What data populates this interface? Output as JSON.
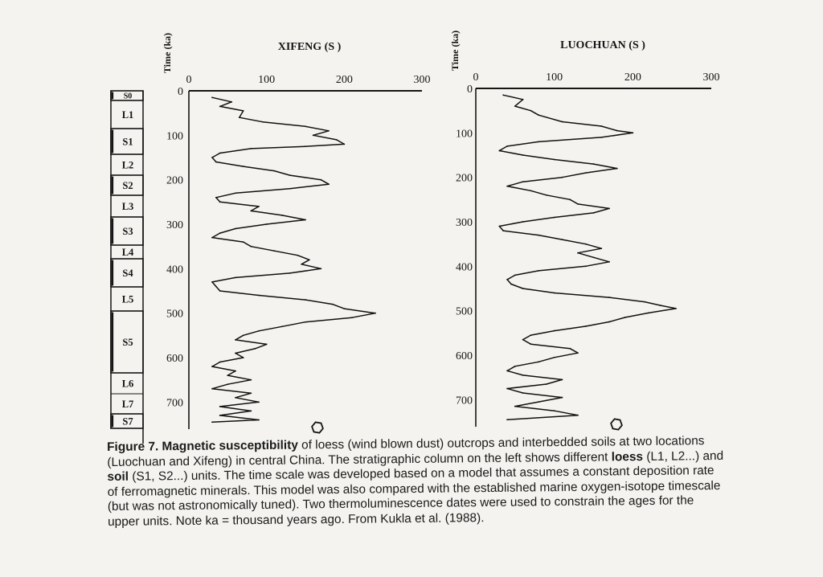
{
  "strat_units": [
    "S0",
    "L1",
    "S1",
    "L2",
    "S2",
    "L3",
    "S3",
    "L4",
    "S4",
    "L5",
    "S5",
    "L6",
    "L7",
    "S7"
  ],
  "time_label": "Time (ka)",
  "chart_data": [
    {
      "type": "line",
      "title": "XIFENG (S )",
      "xlabel": "",
      "ylabel": "Time (ka)",
      "xlim": [
        0,
        300
      ],
      "ylim": [
        0,
        750
      ],
      "y_inverted": true,
      "x_ticks": [
        0,
        100,
        200,
        300
      ],
      "y_ticks": [
        0,
        100,
        200,
        300,
        400,
        500,
        600,
        700
      ],
      "series": [
        {
          "values": [
            {
              "x": 30,
              "y": 15
            },
            {
              "x": 55,
              "y": 25
            },
            {
              "x": 40,
              "y": 35
            },
            {
              "x": 70,
              "y": 45
            },
            {
              "x": 65,
              "y": 60
            },
            {
              "x": 95,
              "y": 70
            },
            {
              "x": 150,
              "y": 80
            },
            {
              "x": 180,
              "y": 90
            },
            {
              "x": 160,
              "y": 100
            },
            {
              "x": 190,
              "y": 110
            },
            {
              "x": 200,
              "y": 120
            },
            {
              "x": 150,
              "y": 125
            },
            {
              "x": 80,
              "y": 130
            },
            {
              "x": 40,
              "y": 140
            },
            {
              "x": 30,
              "y": 150
            },
            {
              "x": 35,
              "y": 160
            },
            {
              "x": 70,
              "y": 170
            },
            {
              "x": 110,
              "y": 180
            },
            {
              "x": 130,
              "y": 190
            },
            {
              "x": 170,
              "y": 200
            },
            {
              "x": 180,
              "y": 210
            },
            {
              "x": 130,
              "y": 220
            },
            {
              "x": 60,
              "y": 230
            },
            {
              "x": 35,
              "y": 240
            },
            {
              "x": 40,
              "y": 250
            },
            {
              "x": 90,
              "y": 260
            },
            {
              "x": 80,
              "y": 270
            },
            {
              "x": 120,
              "y": 280
            },
            {
              "x": 150,
              "y": 290
            },
            {
              "x": 100,
              "y": 300
            },
            {
              "x": 60,
              "y": 310
            },
            {
              "x": 40,
              "y": 320
            },
            {
              "x": 30,
              "y": 330
            },
            {
              "x": 70,
              "y": 340
            },
            {
              "x": 80,
              "y": 350
            },
            {
              "x": 110,
              "y": 360
            },
            {
              "x": 140,
              "y": 370
            },
            {
              "x": 155,
              "y": 380
            },
            {
              "x": 145,
              "y": 390
            },
            {
              "x": 170,
              "y": 400
            },
            {
              "x": 130,
              "y": 410
            },
            {
              "x": 60,
              "y": 420
            },
            {
              "x": 30,
              "y": 430
            },
            {
              "x": 35,
              "y": 440
            },
            {
              "x": 40,
              "y": 450
            },
            {
              "x": 90,
              "y": 460
            },
            {
              "x": 150,
              "y": 470
            },
            {
              "x": 185,
              "y": 480
            },
            {
              "x": 200,
              "y": 490
            },
            {
              "x": 240,
              "y": 500
            },
            {
              "x": 210,
              "y": 510
            },
            {
              "x": 150,
              "y": 520
            },
            {
              "x": 120,
              "y": 530
            },
            {
              "x": 90,
              "y": 540
            },
            {
              "x": 70,
              "y": 550
            },
            {
              "x": 60,
              "y": 560
            },
            {
              "x": 100,
              "y": 570
            },
            {
              "x": 85,
              "y": 580
            },
            {
              "x": 60,
              "y": 590
            },
            {
              "x": 70,
              "y": 600
            },
            {
              "x": 40,
              "y": 610
            },
            {
              "x": 30,
              "y": 620
            },
            {
              "x": 60,
              "y": 630
            },
            {
              "x": 50,
              "y": 640
            },
            {
              "x": 80,
              "y": 650
            },
            {
              "x": 50,
              "y": 660
            },
            {
              "x": 30,
              "y": 670
            },
            {
              "x": 80,
              "y": 680
            },
            {
              "x": 60,
              "y": 690
            },
            {
              "x": 90,
              "y": 700
            },
            {
              "x": 40,
              "y": 710
            },
            {
              "x": 80,
              "y": 720
            },
            {
              "x": 40,
              "y": 730
            },
            {
              "x": 90,
              "y": 740
            },
            {
              "x": 30,
              "y": 745
            }
          ]
        }
      ]
    },
    {
      "type": "line",
      "title": "LUOCHUAN (S )",
      "xlabel": "",
      "ylabel": "Time (ka)",
      "xlim": [
        0,
        300
      ],
      "ylim": [
        0,
        750
      ],
      "y_inverted": true,
      "x_ticks": [
        0,
        100,
        200,
        300
      ],
      "y_ticks": [
        0,
        100,
        200,
        300,
        400,
        500,
        600,
        700
      ],
      "series": [
        {
          "values": [
            {
              "x": 35,
              "y": 15
            },
            {
              "x": 60,
              "y": 25
            },
            {
              "x": 50,
              "y": 40
            },
            {
              "x": 70,
              "y": 50
            },
            {
              "x": 80,
              "y": 60
            },
            {
              "x": 110,
              "y": 75
            },
            {
              "x": 160,
              "y": 85
            },
            {
              "x": 180,
              "y": 95
            },
            {
              "x": 200,
              "y": 100
            },
            {
              "x": 160,
              "y": 110
            },
            {
              "x": 80,
              "y": 120
            },
            {
              "x": 40,
              "y": 130
            },
            {
              "x": 30,
              "y": 140
            },
            {
              "x": 60,
              "y": 150
            },
            {
              "x": 100,
              "y": 160
            },
            {
              "x": 150,
              "y": 170
            },
            {
              "x": 180,
              "y": 180
            },
            {
              "x": 140,
              "y": 190
            },
            {
              "x": 110,
              "y": 200
            },
            {
              "x": 60,
              "y": 210
            },
            {
              "x": 40,
              "y": 220
            },
            {
              "x": 70,
              "y": 230
            },
            {
              "x": 90,
              "y": 240
            },
            {
              "x": 120,
              "y": 250
            },
            {
              "x": 130,
              "y": 260
            },
            {
              "x": 170,
              "y": 270
            },
            {
              "x": 150,
              "y": 280
            },
            {
              "x": 100,
              "y": 290
            },
            {
              "x": 60,
              "y": 300
            },
            {
              "x": 30,
              "y": 310
            },
            {
              "x": 35,
              "y": 320
            },
            {
              "x": 80,
              "y": 330
            },
            {
              "x": 110,
              "y": 340
            },
            {
              "x": 140,
              "y": 350
            },
            {
              "x": 160,
              "y": 360
            },
            {
              "x": 130,
              "y": 370
            },
            {
              "x": 150,
              "y": 380
            },
            {
              "x": 170,
              "y": 390
            },
            {
              "x": 140,
              "y": 400
            },
            {
              "x": 80,
              "y": 410
            },
            {
              "x": 50,
              "y": 420
            },
            {
              "x": 40,
              "y": 430
            },
            {
              "x": 45,
              "y": 440
            },
            {
              "x": 60,
              "y": 450
            },
            {
              "x": 100,
              "y": 460
            },
            {
              "x": 170,
              "y": 470
            },
            {
              "x": 215,
              "y": 480
            },
            {
              "x": 235,
              "y": 488
            },
            {
              "x": 255,
              "y": 495
            },
            {
              "x": 220,
              "y": 505
            },
            {
              "x": 190,
              "y": 515
            },
            {
              "x": 170,
              "y": 525
            },
            {
              "x": 140,
              "y": 535
            },
            {
              "x": 100,
              "y": 545
            },
            {
              "x": 70,
              "y": 555
            },
            {
              "x": 60,
              "y": 565
            },
            {
              "x": 70,
              "y": 575
            },
            {
              "x": 120,
              "y": 585
            },
            {
              "x": 130,
              "y": 595
            },
            {
              "x": 100,
              "y": 605
            },
            {
              "x": 80,
              "y": 615
            },
            {
              "x": 50,
              "y": 625
            },
            {
              "x": 40,
              "y": 635
            },
            {
              "x": 60,
              "y": 645
            },
            {
              "x": 110,
              "y": 655
            },
            {
              "x": 90,
              "y": 665
            },
            {
              "x": 40,
              "y": 675
            },
            {
              "x": 60,
              "y": 685
            },
            {
              "x": 110,
              "y": 695
            },
            {
              "x": 80,
              "y": 705
            },
            {
              "x": 50,
              "y": 715
            },
            {
              "x": 100,
              "y": 725
            },
            {
              "x": 130,
              "y": 735
            },
            {
              "x": 40,
              "y": 745
            }
          ]
        }
      ]
    }
  ],
  "caption": {
    "label": "Figure 7.",
    "bold_term": "Magnetic susceptibility",
    "text_1": " of loess (wind blown dust) outcrops and interbedded soils at two locations (Luochuan and Xifeng) in central China. The stratigraphic column on the left shows different ",
    "bold_loess": "loess",
    "text_2": " (L1, L2...) and ",
    "bold_soil": "soil",
    "text_3": " (S1, S2...) units. The time scale was developed based on a model that assumes a constant deposition rate of ferromagnetic minerals. This model was also compared with the established marine oxygen-isotope timescale (but was not astronomically tuned). Two thermoluminescence dates were used to constrain the ages for the upper units. Note ka = thousand years ago. From Kukla et al. (1988)."
  }
}
